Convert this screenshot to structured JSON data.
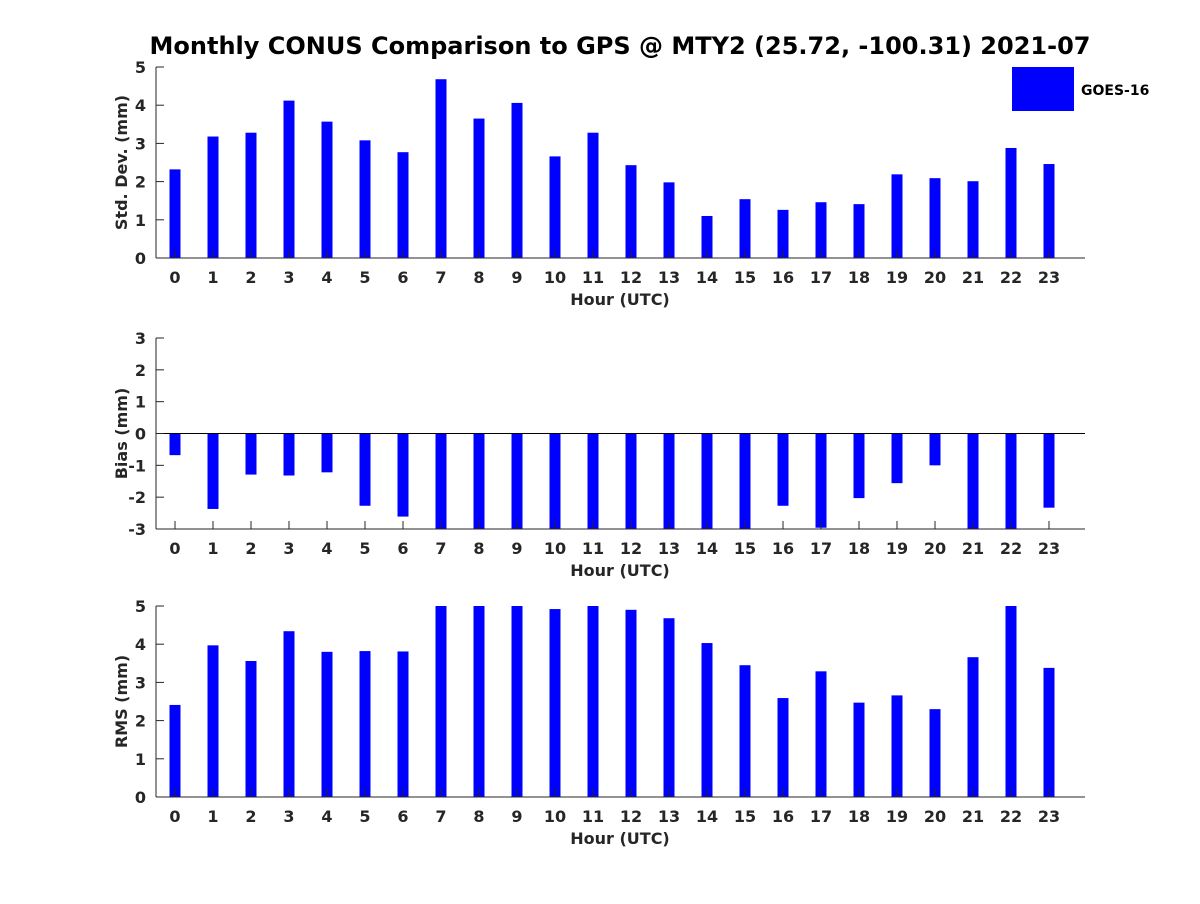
{
  "title": "Monthly CONUS Comparison to GPS @ MTY2 (25.72, -100.31) 2021-07",
  "legend": {
    "label": "GOES-16",
    "color": "#0000ff"
  },
  "chart_data": [
    {
      "type": "bar",
      "name": "std-dev",
      "categories": [
        "0",
        "1",
        "2",
        "3",
        "4",
        "5",
        "6",
        "7",
        "8",
        "9",
        "10",
        "11",
        "12",
        "13",
        "14",
        "15",
        "16",
        "17",
        "18",
        "19",
        "20",
        "21",
        "22",
        "23"
      ],
      "series": [
        {
          "name": "GOES-16",
          "values": [
            2.32,
            3.18,
            3.28,
            4.12,
            3.57,
            3.08,
            2.77,
            4.68,
            3.65,
            4.06,
            2.66,
            3.28,
            2.43,
            1.98,
            1.1,
            1.54,
            1.26,
            1.46,
            1.41,
            2.19,
            2.09,
            2.01,
            2.88,
            2.46
          ]
        }
      ],
      "xlabel": "Hour (UTC)",
      "ylabel": "Std. Dev. (mm)",
      "ylim": [
        0,
        5
      ],
      "yticks": [
        "0",
        "1",
        "2",
        "3",
        "4",
        "5"
      ],
      "grid": false
    },
    {
      "type": "bar",
      "name": "bias",
      "categories": [
        "0",
        "1",
        "2",
        "3",
        "4",
        "5",
        "6",
        "7",
        "8",
        "9",
        "10",
        "11",
        "12",
        "13",
        "14",
        "15",
        "16",
        "17",
        "18",
        "19",
        "20",
        "21",
        "22",
        "23"
      ],
      "series": [
        {
          "name": "GOES-16",
          "values": [
            -0.68,
            -2.37,
            -1.29,
            -1.32,
            -1.22,
            -2.27,
            -2.61,
            -3.0,
            -3.0,
            -3.0,
            -3.0,
            -3.0,
            -3.0,
            -3.0,
            -3.0,
            -3.0,
            -2.27,
            -2.96,
            -2.03,
            -1.56,
            -1.0,
            -3.0,
            -3.0,
            -2.33
          ]
        }
      ],
      "xlabel": "Hour (UTC)",
      "ylabel": "Bias (mm)",
      "ylim": [
        -3,
        3
      ],
      "yticks": [
        "-3",
        "-2",
        "-1",
        "0",
        "1",
        "2",
        "3"
      ],
      "grid": false
    },
    {
      "type": "bar",
      "name": "rms",
      "categories": [
        "0",
        "1",
        "2",
        "3",
        "4",
        "5",
        "6",
        "7",
        "8",
        "9",
        "10",
        "11",
        "12",
        "13",
        "14",
        "15",
        "16",
        "17",
        "18",
        "19",
        "20",
        "21",
        "22",
        "23"
      ],
      "series": [
        {
          "name": "GOES-16",
          "values": [
            2.41,
            3.97,
            3.56,
            4.34,
            3.8,
            3.82,
            3.81,
            5.0,
            5.0,
            5.0,
            4.92,
            5.0,
            4.9,
            4.68,
            4.03,
            3.45,
            2.59,
            3.29,
            2.47,
            2.66,
            2.3,
            3.66,
            5.0,
            3.38
          ]
        }
      ],
      "xlabel": "Hour (UTC)",
      "ylabel": "RMS (mm)",
      "ylim": [
        0,
        5
      ],
      "yticks": [
        "0",
        "1",
        "2",
        "3",
        "4",
        "5"
      ],
      "grid": false
    }
  ]
}
